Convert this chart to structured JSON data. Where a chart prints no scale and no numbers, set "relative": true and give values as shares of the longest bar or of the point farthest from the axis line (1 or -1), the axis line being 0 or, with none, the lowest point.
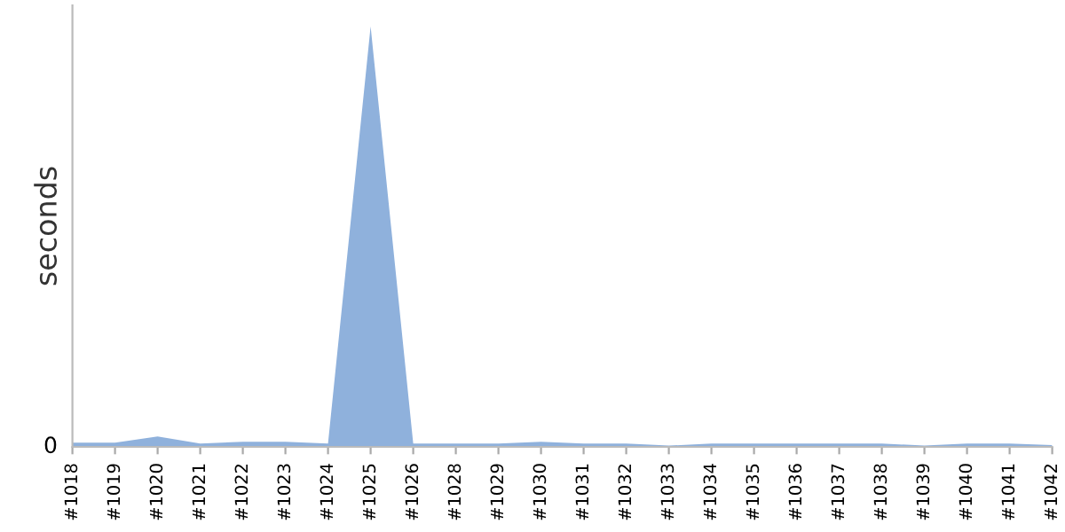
{
  "chart_data": {
    "type": "area",
    "ylabel": "seconds",
    "relative": true,
    "annotations": [
      "0"
    ],
    "categories": [
      "#1018",
      "#1019",
      "#1020",
      "#1021",
      "#1022",
      "#1023",
      "#1024",
      "#1025",
      "#1026",
      "#1028",
      "#1029",
      "#1030",
      "#1031",
      "#1032",
      "#1033",
      "#1034",
      "#1035",
      "#1036",
      "#1037",
      "#1038",
      "#1039",
      "#1040",
      "#1041",
      "#1042"
    ],
    "series": [
      {
        "color": "#8fb1dc",
        "values": [
          0.01,
          0.01,
          0.025,
          0.008,
          0.012,
          0.012,
          0.008,
          1,
          0.008,
          0.008,
          0.008,
          0.012,
          0.008,
          0.008,
          0.003,
          0.008,
          0.008,
          0.008,
          0.008,
          0.008,
          0.003,
          0.008,
          0.008,
          0.004
        ]
      }
    ],
    "grid": false,
    "legend": false
  }
}
